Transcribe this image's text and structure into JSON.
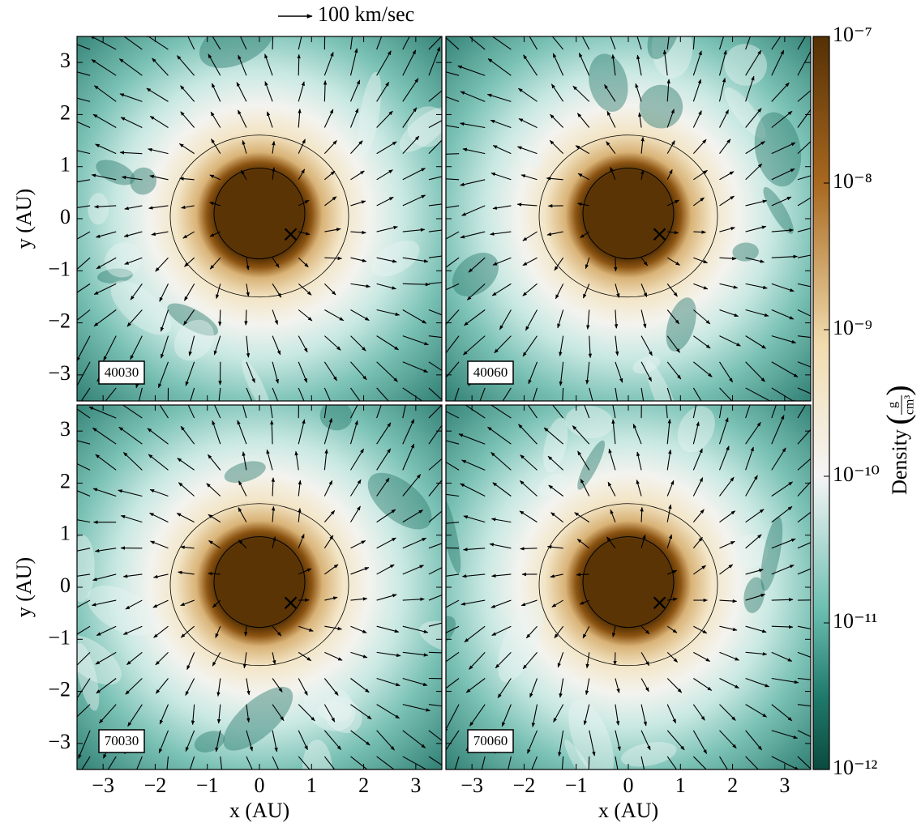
{
  "annotation": "100 km/sec",
  "chart_data": [
    {
      "type": "heatmap",
      "label": "40030",
      "xlim": [
        -3.5,
        3.5
      ],
      "ylim": [
        -3.5,
        3.5
      ],
      "xticks": [
        -3,
        -2,
        -1,
        0,
        1,
        2,
        3
      ],
      "xtick_labels": false,
      "yticks": [
        {
          "value": -3,
          "label": "−3"
        },
        {
          "value": -2,
          "label": "−2"
        },
        {
          "value": -1,
          "label": "−1"
        },
        0,
        1,
        2,
        3
      ],
      "ytick_labels": true,
      "ylabel": "y  (AU)",
      "marker": {
        "x": 0.6,
        "y": -0.3
      }
    },
    {
      "type": "heatmap",
      "label": "40060",
      "xlim": [
        -3.5,
        3.5
      ],
      "ylim": [
        -3.5,
        3.5
      ],
      "xticks": [
        -3,
        -2,
        -1,
        0,
        1,
        2,
        3
      ],
      "xtick_labels": false,
      "yticks": [
        -3,
        -2,
        -1,
        0,
        1,
        2,
        3
      ],
      "ytick_labels": false,
      "marker": {
        "x": 0.6,
        "y": -0.3
      }
    },
    {
      "type": "heatmap",
      "label": "70030",
      "xlim": [
        -3.5,
        3.5
      ],
      "ylim": [
        -3.5,
        3.5
      ],
      "xticks": [
        {
          "value": -3,
          "label": "−3"
        },
        {
          "value": -2,
          "label": "−2"
        },
        {
          "value": -1,
          "label": "−1"
        },
        0,
        1,
        2,
        3
      ],
      "xtick_labels": true,
      "yticks": [
        {
          "value": -3,
          "label": "−3"
        },
        {
          "value": -2,
          "label": "−2"
        },
        {
          "value": -1,
          "label": "−1"
        },
        0,
        1,
        2,
        3
      ],
      "ytick_labels": true,
      "xlabel": "x  (AU)",
      "ylabel": "y  (AU)",
      "marker": {
        "x": 0.6,
        "y": -0.3
      }
    },
    {
      "type": "heatmap",
      "label": "70060",
      "xlim": [
        -3.5,
        3.5
      ],
      "ylim": [
        -3.5,
        3.5
      ],
      "xticks": [
        {
          "value": -3,
          "label": "−3"
        },
        {
          "value": -2,
          "label": "−2"
        },
        {
          "value": -1,
          "label": "−1"
        },
        0,
        1,
        2,
        3
      ],
      "xtick_labels": true,
      "yticks": [
        -3,
        -2,
        -1,
        0,
        1,
        2,
        3
      ],
      "ytick_labels": false,
      "xlabel": "x  (AU)",
      "marker": {
        "x": 0.6,
        "y": -0.3
      }
    }
  ],
  "colorbar": {
    "label": "Density",
    "unit_num": "g",
    "unit_den": "cm³",
    "scale": "log",
    "lim": [
      1e-12,
      1e-07
    ],
    "ticks": [
      {
        "value": 1e-12,
        "label": "10⁻¹²"
      },
      {
        "value": 1e-11,
        "label": "10⁻¹¹"
      },
      {
        "value": 1e-10,
        "label": "10⁻¹⁰"
      },
      {
        "value": 1e-09,
        "label": "10⁻⁹"
      },
      {
        "value": 1e-08,
        "label": "10⁻⁸"
      },
      {
        "value": 1e-07,
        "label": "10⁻⁷"
      }
    ]
  }
}
